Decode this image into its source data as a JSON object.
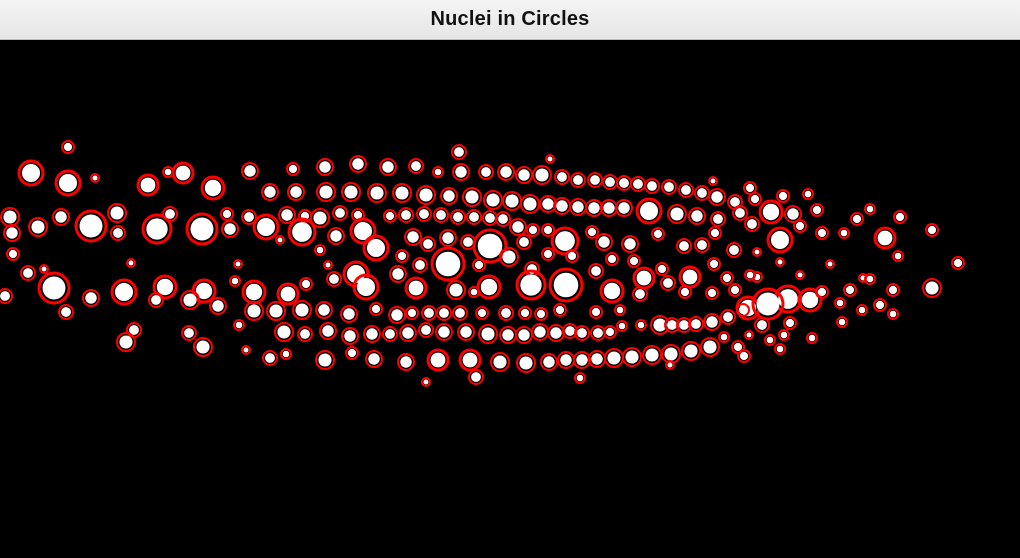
{
  "window": {
    "title": "Nuclei in Circles"
  },
  "figure": {
    "description_label": "",
    "background_color": "#000000",
    "nucleus_color": "#ffffff",
    "circle_color": "#ff0000"
  }
}
